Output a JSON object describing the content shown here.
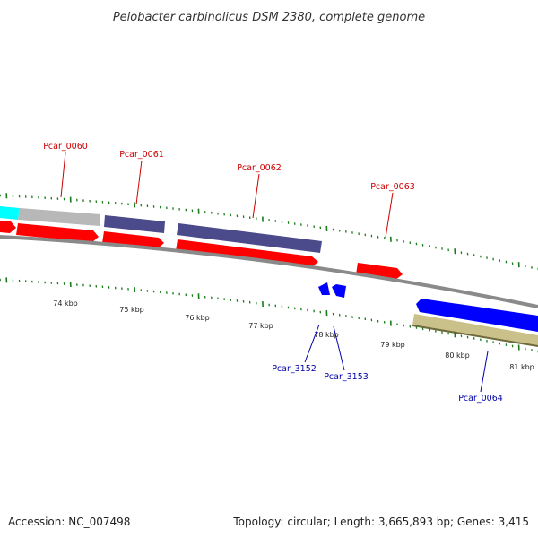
{
  "title": "Pelobacter carbinolicus DSM 2380, complete genome",
  "footer": {
    "accession": "Accession: NC_007498",
    "summary": "Topology: circular; Length: 3,665,893 bp; Genes: 3,415"
  },
  "colors": {
    "forward_label": "#cc0000",
    "reverse_label": "#0000aa",
    "cds": "#ff0000",
    "purple_feature": "#4b4a8a",
    "blue_feature": "#0000ff",
    "khaki_feature": "#c9c08a",
    "grey_feature": "#b8b8b8",
    "cyan_feature": "#00ffff",
    "backbone": "#8c8c8c",
    "tick": "#1a7a1a"
  },
  "scale_labels": [
    "74 kbp",
    "75 kbp",
    "76 kbp",
    "77 kbp",
    "78 kbp",
    "79 kbp",
    "80 kbp",
    "81 kbp"
  ],
  "forward_genes": [
    {
      "id": "g60",
      "label": "Pcar_0060"
    },
    {
      "id": "g61",
      "label": "Pcar_0061"
    },
    {
      "id": "g62",
      "label": "Pcar_0062"
    },
    {
      "id": "g63",
      "label": "Pcar_0063"
    }
  ],
  "reverse_genes": [
    {
      "id": "g3152",
      "label": "Pcar_3152"
    },
    {
      "id": "g3153",
      "label": "Pcar_3153"
    },
    {
      "id": "g64",
      "label": "Pcar_0064"
    }
  ]
}
